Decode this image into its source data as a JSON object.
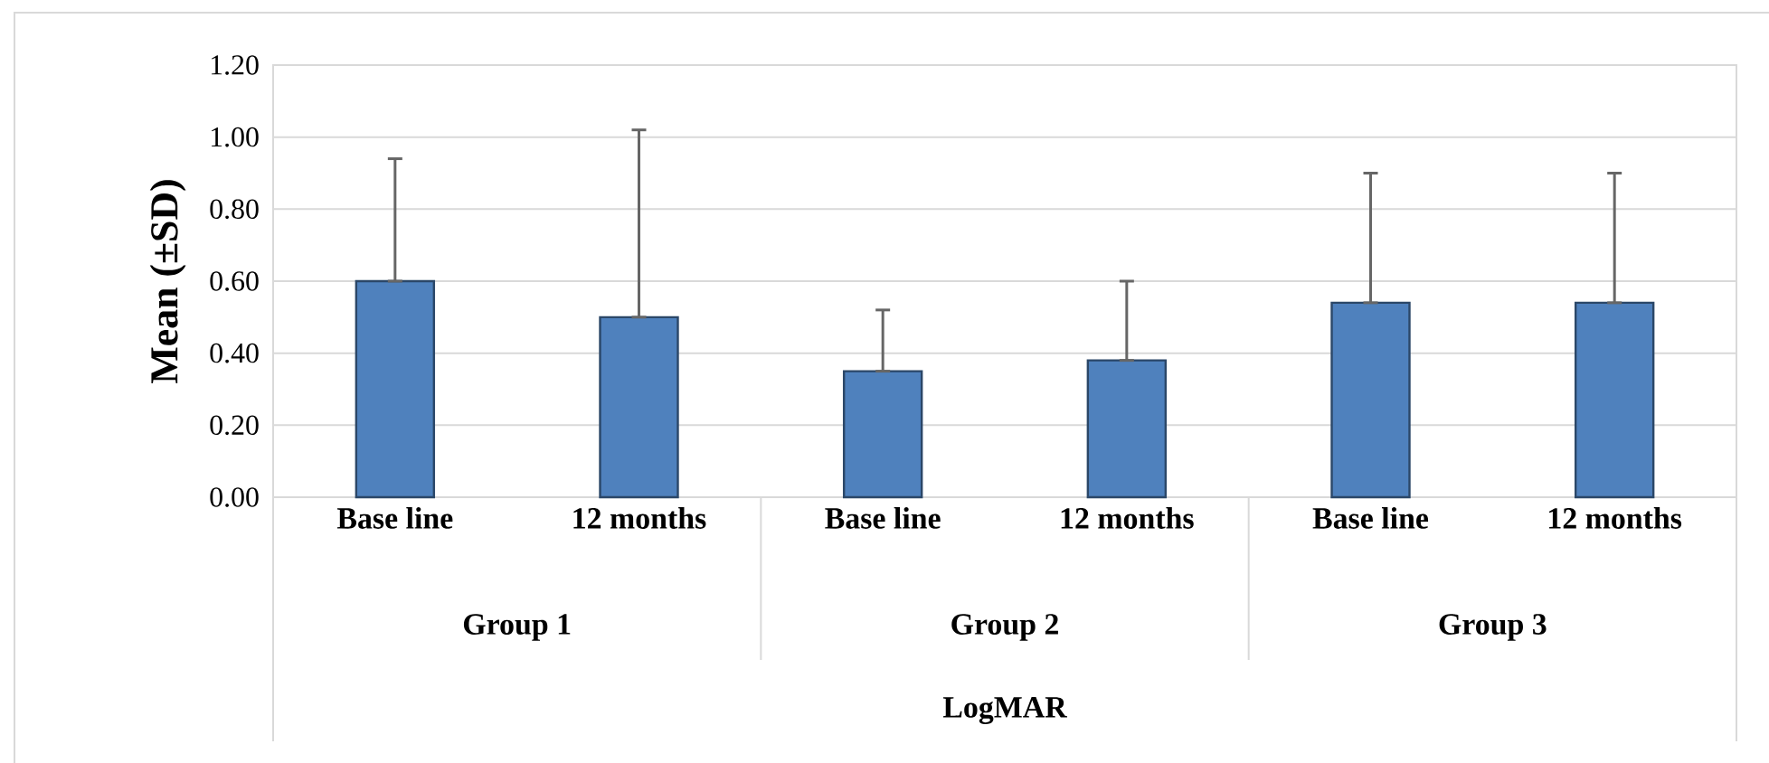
{
  "chart_data": {
    "type": "bar",
    "ylabel": "Mean (±SD)",
    "categories": [
      "Base line",
      "12 months",
      "Base line",
      "12 months",
      "Base line",
      "12 months"
    ],
    "annotations": [
      "Group 1",
      "Group 2",
      "Group 3",
      "LogMAR"
    ],
    "values": [
      0.6,
      0.5,
      0.35,
      0.38,
      0.54,
      0.54
    ],
    "errors": [
      [
        0.6,
        0.94
      ],
      [
        0.5,
        1.02
      ],
      [
        0.35,
        0.52
      ],
      [
        0.38,
        0.6
      ],
      [
        0.54,
        0.9
      ],
      [
        0.54,
        0.9
      ]
    ],
    "color": "#4f81bd",
    "ylim": [
      0,
      1.2
    ],
    "yticks": [
      {
        "value": 0,
        "label": "0.00"
      },
      {
        "value": 0.2,
        "label": "0.20"
      },
      {
        "value": 0.4,
        "label": "0.40"
      },
      {
        "value": 0.6,
        "label": "0.60"
      },
      {
        "value": 0.8,
        "label": "0.80"
      },
      {
        "value": 1.0,
        "label": "1.00"
      },
      {
        "value": 1.2,
        "label": "1.20"
      }
    ],
    "grid": "y"
  }
}
